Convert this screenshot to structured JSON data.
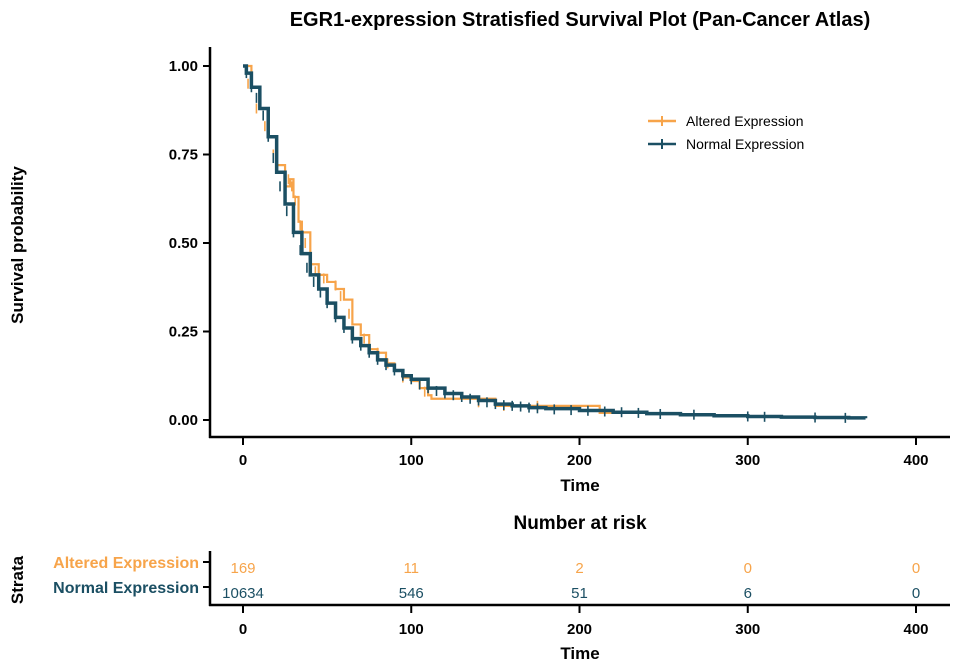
{
  "chart_data": [
    {
      "type": "line",
      "subtype": "kaplan-meier",
      "title": "EGR1-expression Stratisfied Survival Plot (Pan-Cancer Atlas)",
      "xlabel": "Time",
      "ylabel": "Survival probability",
      "xlim": [
        -20,
        420
      ],
      "ylim": [
        -0.05,
        1.06
      ],
      "x_ticks": [
        0,
        100,
        200,
        300,
        400
      ],
      "y_ticks": [
        0.0,
        0.25,
        0.5,
        0.75,
        1.0
      ],
      "y_tick_labels": [
        "0.00",
        "0.25",
        "0.50",
        "0.75",
        "1.00"
      ],
      "legend_position": "top-right",
      "series": [
        {
          "name": "Altered Expression",
          "color": "#F7A44A",
          "x": [
            0,
            5,
            10,
            15,
            20,
            25,
            28,
            30,
            33,
            35,
            40,
            45,
            50,
            55,
            60,
            65,
            70,
            75,
            80,
            85,
            90,
            95,
            100,
            105,
            110,
            112,
            130,
            150,
            160,
            190,
            212,
            225
          ],
          "y": [
            1.0,
            0.94,
            0.88,
            0.8,
            0.72,
            0.66,
            0.68,
            0.63,
            0.56,
            0.53,
            0.44,
            0.41,
            0.39,
            0.37,
            0.34,
            0.27,
            0.24,
            0.2,
            0.19,
            0.16,
            0.14,
            0.12,
            0.11,
            0.09,
            0.07,
            0.06,
            0.06,
            0.04,
            0.04,
            0.04,
            0.02,
            0.02
          ],
          "censor_x": [
            3,
            8,
            13,
            18,
            25,
            27,
            29,
            31,
            34,
            37,
            43,
            48,
            55,
            58,
            63,
            72,
            80,
            86,
            95,
            108,
            140,
            155,
            175
          ],
          "censor_y": [
            0.95,
            0.88,
            0.83,
            0.75,
            0.66,
            0.68,
            0.66,
            0.62,
            0.55,
            0.5,
            0.42,
            0.4,
            0.38,
            0.35,
            0.3,
            0.23,
            0.19,
            0.16,
            0.12,
            0.08,
            0.05,
            0.04,
            0.04
          ]
        },
        {
          "name": "Normal Expression",
          "color": "#1B4F63",
          "x": [
            0,
            2,
            5,
            10,
            15,
            20,
            25,
            30,
            35,
            40,
            45,
            50,
            55,
            60,
            65,
            70,
            75,
            80,
            85,
            90,
            95,
            100,
            110,
            120,
            130,
            140,
            150,
            160,
            170,
            180,
            200,
            220,
            240,
            260,
            280,
            300,
            320,
            340,
            360,
            370
          ],
          "y": [
            1.0,
            0.98,
            0.94,
            0.88,
            0.8,
            0.7,
            0.61,
            0.53,
            0.47,
            0.41,
            0.37,
            0.33,
            0.29,
            0.26,
            0.23,
            0.21,
            0.19,
            0.17,
            0.155,
            0.14,
            0.125,
            0.115,
            0.09,
            0.075,
            0.065,
            0.055,
            0.045,
            0.04,
            0.035,
            0.032,
            0.027,
            0.022,
            0.018,
            0.015,
            0.012,
            0.01,
            0.008,
            0.007,
            0.006,
            0.005
          ],
          "censor_x": [
            2,
            5,
            8,
            12,
            15,
            18,
            22,
            26,
            30,
            34,
            38,
            42,
            46,
            50,
            55,
            60,
            65,
            70,
            75,
            80,
            85,
            90,
            95,
            100,
            105,
            110,
            115,
            120,
            125,
            130,
            135,
            140,
            145,
            150,
            155,
            160,
            165,
            170,
            175,
            185,
            195,
            205,
            215,
            225,
            235,
            248,
            268,
            300,
            310,
            340,
            358
          ],
          "censor_y": [
            0.98,
            0.94,
            0.91,
            0.86,
            0.8,
            0.74,
            0.66,
            0.59,
            0.53,
            0.48,
            0.43,
            0.39,
            0.36,
            0.33,
            0.29,
            0.26,
            0.23,
            0.21,
            0.19,
            0.17,
            0.155,
            0.14,
            0.125,
            0.115,
            0.1,
            0.09,
            0.082,
            0.075,
            0.07,
            0.065,
            0.06,
            0.055,
            0.05,
            0.045,
            0.042,
            0.04,
            0.038,
            0.035,
            0.033,
            0.03,
            0.028,
            0.026,
            0.024,
            0.022,
            0.02,
            0.017,
            0.015,
            0.01,
            0.009,
            0.007,
            0.006
          ]
        }
      ]
    },
    {
      "type": "table",
      "title": "Number at risk",
      "xlabel": "Time",
      "ylabel": "Strata",
      "xlim": [
        -20,
        420
      ],
      "x_ticks": [
        0,
        100,
        200,
        300,
        400
      ],
      "rows": [
        {
          "name": "Altered Expression",
          "color": "#F7A44A",
          "values": [
            "169",
            "11",
            "2",
            "0",
            "0"
          ]
        },
        {
          "name": "Normal Expression",
          "color": "#1B4F63",
          "values": [
            "10634",
            "546",
            "51",
            "6",
            "0"
          ]
        }
      ]
    }
  ]
}
